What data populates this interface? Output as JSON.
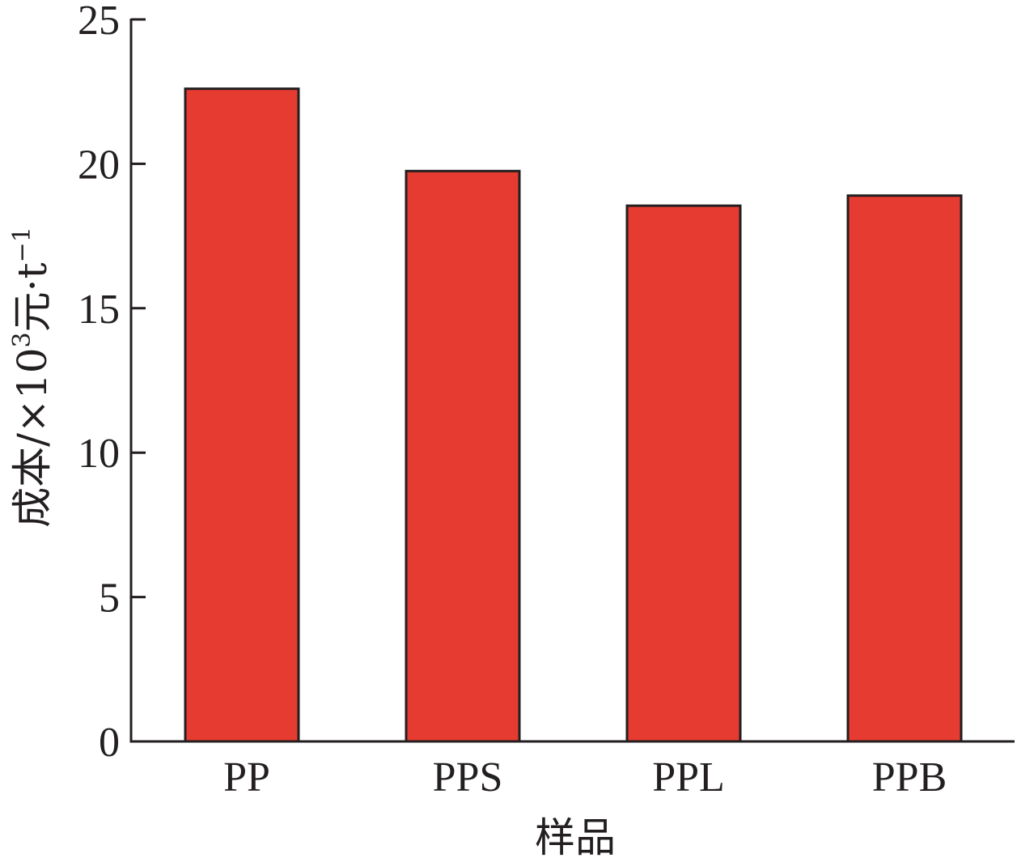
{
  "chart_data": {
    "type": "bar",
    "categories": [
      "PP",
      "PPS",
      "PPL",
      "PPB"
    ],
    "values": [
      22.6,
      19.75,
      18.55,
      18.9
    ],
    "title": "",
    "xlabel": "样品",
    "ylabel": "成本/×10³元·t⁻¹",
    "ylabel_parts": {
      "prefix": "成本/×10",
      "sup1": "3",
      "middle": "元·t",
      "sup2": "−1"
    },
    "ylim": [
      0,
      25
    ],
    "yticks": [
      0,
      5,
      10,
      15,
      20,
      25
    ],
    "bar_color": "#e63b30",
    "edge_color": "#231f20",
    "grid": false,
    "legend": false
  }
}
